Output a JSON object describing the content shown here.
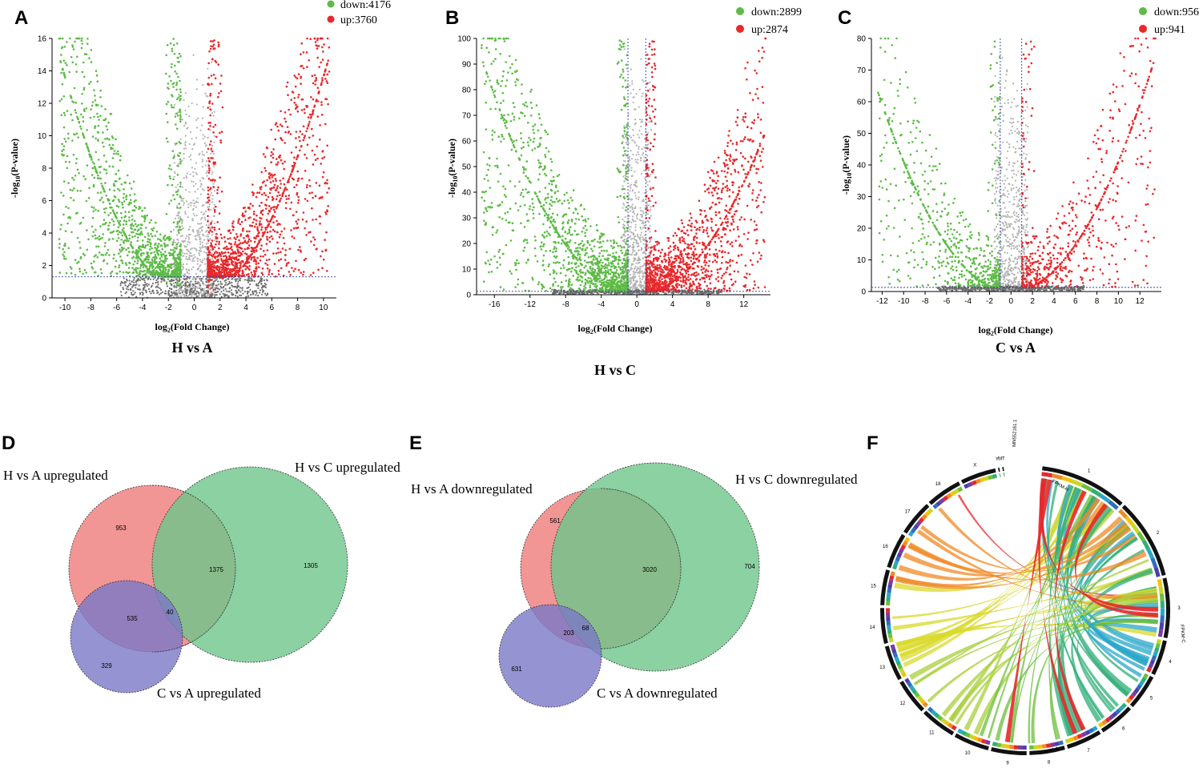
{
  "colors": {
    "down": "#5dbb46",
    "up": "#e8282b",
    "ns": "#b3b3b3",
    "ns_dark": "#6e6e6e",
    "threshold": "#2b3fa8",
    "venn_red": "#ef7b7b",
    "venn_green": "#6ec58a",
    "venn_blue": "#7b78c7"
  },
  "chart_data": [
    {
      "panel": "A",
      "type": "scatter",
      "subtitle": "H vs A",
      "xlabel": "log2(Fold Change)",
      "ylabel": "-log10(P-value)",
      "xlim": [
        -11,
        11
      ],
      "ylim": [
        0,
        16
      ],
      "xticks": [
        -10,
        -8,
        -6,
        -4,
        -2,
        0,
        2,
        4,
        6,
        8,
        10
      ],
      "yticks": [
        0,
        2,
        4,
        6,
        8,
        10,
        12,
        14,
        16
      ],
      "fc_threshold": 1,
      "p_threshold": 1.3,
      "series": [
        {
          "name": "down:4176",
          "label_text": "down:4176",
          "count": 4176
        },
        {
          "name": "up:3760",
          "label_text": "up:3760",
          "count": 3760
        }
      ]
    },
    {
      "panel": "B",
      "type": "scatter",
      "subtitle": "H vs C",
      "xlabel": "log2(Fold Change)",
      "ylabel": "-log10(P-value)",
      "xlim": [
        -18,
        15
      ],
      "ylim": [
        0,
        100
      ],
      "xticks": [
        -16,
        -12,
        -8,
        -4,
        0,
        4,
        8,
        12
      ],
      "yticks": [
        0,
        10,
        20,
        30,
        40,
        50,
        60,
        70,
        80,
        90,
        100
      ],
      "fc_threshold": 1,
      "p_threshold": 1.3,
      "series": [
        {
          "name": "down:2899",
          "label_text": "down:2899",
          "count": 2899
        },
        {
          "name": "up:2874",
          "label_text": "up:2874",
          "count": 2874
        }
      ]
    },
    {
      "panel": "C",
      "type": "scatter",
      "subtitle": "C vs A",
      "xlabel": "log2(Fold Change)",
      "ylabel": "-log10(P-value)",
      "xlim": [
        -13,
        14
      ],
      "ylim": [
        0,
        80
      ],
      "xticks": [
        -12,
        -10,
        -8,
        -6,
        -4,
        -2,
        0,
        2,
        4,
        6,
        8,
        10,
        12
      ],
      "yticks": [
        0,
        10,
        20,
        30,
        40,
        50,
        60,
        70,
        80
      ],
      "fc_threshold": 1,
      "p_threshold": 1.3,
      "series": [
        {
          "name": "down:956",
          "label_text": "down:956",
          "count": 956
        },
        {
          "name": "up:941",
          "label_text": "up:941",
          "count": 941
        }
      ]
    },
    {
      "panel": "D",
      "type": "venn",
      "sets": [
        "H vs A upregulated",
        "H vs C upregulated",
        "C vs A upregulated"
      ],
      "regions": {
        "a_only": "953",
        "b_only": "1305",
        "ab": "1375",
        "a_c": "535",
        "abc": "40",
        "c_only": "329"
      }
    },
    {
      "panel": "E",
      "type": "venn",
      "sets": [
        "H vs A downregulated",
        "H vs C downregulated",
        "C vs A downregulated"
      ],
      "regions": {
        "a_only": "561",
        "ab": "3020",
        "b_only": "704",
        "a_c": "203",
        "abc": "68",
        "c_only": "631"
      }
    },
    {
      "panel": "F",
      "type": "chord",
      "labels": {
        "chroms": [
          "1",
          "2",
          "3",
          "4",
          "5",
          "6",
          "7",
          "8",
          "9",
          "10",
          "11",
          "12",
          "13",
          "14",
          "15",
          "16",
          "17",
          "18",
          "X",
          "Y",
          "MT"
        ],
        "scaffold": "MN552161.1",
        "sample_tracks": [
          "FPKM-H",
          "FPKM-C",
          "FPKM-A"
        ]
      }
    }
  ]
}
